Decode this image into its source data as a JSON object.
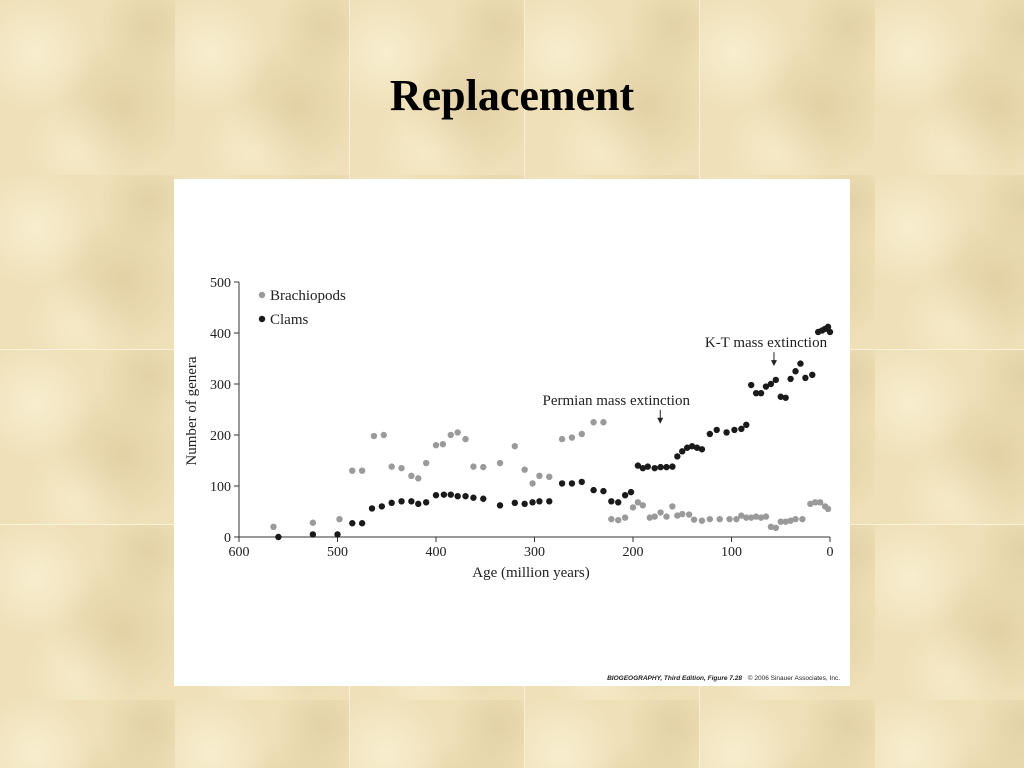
{
  "slide": {
    "title": "Replacement"
  },
  "chart_data": {
    "type": "scatter",
    "xlabel": "Age (million years)",
    "ylabel": "Number of genera",
    "xlim": [
      600,
      0
    ],
    "ylim": [
      0,
      500
    ],
    "x_reversed": true,
    "x_ticks": [
      600,
      500,
      400,
      300,
      200,
      100,
      0
    ],
    "y_ticks": [
      0,
      100,
      200,
      300,
      400,
      500
    ],
    "grid": false,
    "legend_position": "top-left",
    "series": [
      {
        "name": "Brachiopods",
        "color": "#9a9a9a",
        "points": [
          [
            565,
            20
          ],
          [
            525,
            28
          ],
          [
            498,
            35
          ],
          [
            485,
            130
          ],
          [
            475,
            130
          ],
          [
            463,
            198
          ],
          [
            453,
            200
          ],
          [
            445,
            138
          ],
          [
            435,
            135
          ],
          [
            425,
            120
          ],
          [
            418,
            115
          ],
          [
            410,
            145
          ],
          [
            400,
            180
          ],
          [
            393,
            182
          ],
          [
            385,
            200
          ],
          [
            378,
            205
          ],
          [
            370,
            192
          ],
          [
            362,
            138
          ],
          [
            352,
            137
          ],
          [
            335,
            145
          ],
          [
            320,
            178
          ],
          [
            310,
            132
          ],
          [
            302,
            105
          ],
          [
            295,
            120
          ],
          [
            285,
            118
          ],
          [
            272,
            192
          ],
          [
            262,
            195
          ],
          [
            252,
            202
          ],
          [
            240,
            225
          ],
          [
            230,
            225
          ],
          [
            222,
            35
          ],
          [
            215,
            33
          ],
          [
            208,
            38
          ],
          [
            200,
            58
          ],
          [
            195,
            68
          ],
          [
            190,
            62
          ],
          [
            183,
            38
          ],
          [
            178,
            40
          ],
          [
            172,
            48
          ],
          [
            166,
            40
          ],
          [
            160,
            60
          ],
          [
            155,
            42
          ],
          [
            150,
            45
          ],
          [
            143,
            44
          ],
          [
            138,
            34
          ],
          [
            130,
            32
          ],
          [
            122,
            35
          ],
          [
            112,
            35
          ],
          [
            102,
            35
          ],
          [
            95,
            35
          ],
          [
            90,
            42
          ],
          [
            85,
            38
          ],
          [
            80,
            38
          ],
          [
            75,
            40
          ],
          [
            70,
            38
          ],
          [
            65,
            40
          ],
          [
            60,
            20
          ],
          [
            55,
            18
          ],
          [
            50,
            30
          ],
          [
            45,
            30
          ],
          [
            40,
            32
          ],
          [
            35,
            35
          ],
          [
            28,
            35
          ],
          [
            20,
            65
          ],
          [
            15,
            68
          ],
          [
            10,
            68
          ],
          [
            5,
            60
          ],
          [
            2,
            55
          ]
        ]
      },
      {
        "name": "Clams",
        "color": "#1a1a1a",
        "points": [
          [
            560,
            0
          ],
          [
            525,
            5
          ],
          [
            500,
            5
          ],
          [
            485,
            27
          ],
          [
            475,
            27
          ],
          [
            465,
            56
          ],
          [
            455,
            60
          ],
          [
            445,
            67
          ],
          [
            435,
            70
          ],
          [
            425,
            70
          ],
          [
            418,
            65
          ],
          [
            410,
            68
          ],
          [
            400,
            82
          ],
          [
            392,
            83
          ],
          [
            385,
            83
          ],
          [
            378,
            80
          ],
          [
            370,
            80
          ],
          [
            362,
            77
          ],
          [
            352,
            75
          ],
          [
            335,
            62
          ],
          [
            320,
            67
          ],
          [
            310,
            65
          ],
          [
            302,
            68
          ],
          [
            295,
            70
          ],
          [
            285,
            70
          ],
          [
            272,
            105
          ],
          [
            262,
            105
          ],
          [
            252,
            108
          ],
          [
            240,
            92
          ],
          [
            230,
            90
          ],
          [
            222,
            70
          ],
          [
            215,
            68
          ],
          [
            208,
            82
          ],
          [
            202,
            88
          ],
          [
            195,
            140
          ],
          [
            190,
            135
          ],
          [
            185,
            138
          ],
          [
            178,
            135
          ],
          [
            172,
            137
          ],
          [
            166,
            137
          ],
          [
            160,
            138
          ],
          [
            155,
            158
          ],
          [
            150,
            168
          ],
          [
            145,
            175
          ],
          [
            140,
            178
          ],
          [
            135,
            175
          ],
          [
            130,
            172
          ],
          [
            122,
            202
          ],
          [
            115,
            210
          ],
          [
            105,
            205
          ],
          [
            97,
            210
          ],
          [
            90,
            212
          ],
          [
            85,
            220
          ],
          [
            80,
            298
          ],
          [
            75,
            282
          ],
          [
            70,
            282
          ],
          [
            65,
            295
          ],
          [
            60,
            300
          ],
          [
            55,
            308
          ],
          [
            50,
            275
          ],
          [
            45,
            273
          ],
          [
            40,
            310
          ],
          [
            35,
            325
          ],
          [
            30,
            340
          ],
          [
            25,
            312
          ],
          [
            18,
            318
          ],
          [
            12,
            402
          ],
          [
            8,
            405
          ],
          [
            5,
            408
          ],
          [
            2,
            412
          ],
          [
            0,
            402
          ]
        ]
      }
    ],
    "annotations": [
      {
        "text": "Permian mass extinction",
        "x": 217,
        "y": 220
      },
      {
        "text": "K-T  mass extinction",
        "x": 65,
        "y": 333
      }
    ]
  },
  "figure_credit": {
    "source": "BIOGEOGRAPHY, Third Edition, Figure 7.28",
    "copyright": "© 2006 Sinauer Associates, Inc."
  }
}
